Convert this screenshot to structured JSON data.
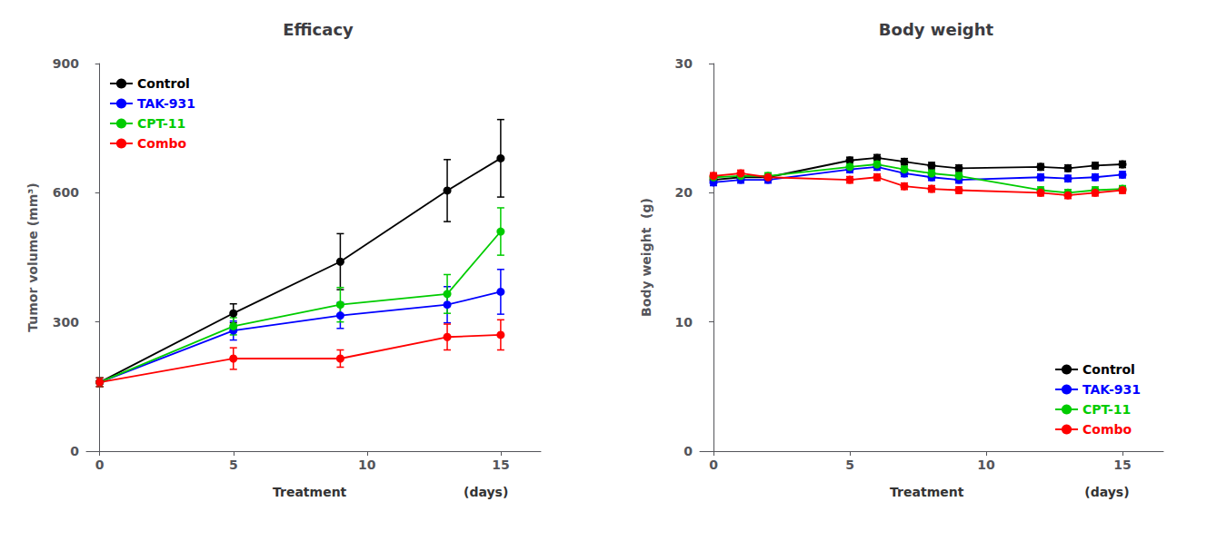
{
  "chart_data": [
    {
      "type": "line",
      "title": "Efficacy",
      "ylabel": "Tumor volume (mm³)",
      "annotations": [
        "Treatment",
        "(days)"
      ],
      "x": [
        0,
        5,
        9,
        13,
        15
      ],
      "xlim": [
        -0.5,
        16.5
      ],
      "xticks": [
        0,
        5,
        10,
        15
      ],
      "ylim": [
        0,
        900
      ],
      "yticks": [
        0,
        300,
        600,
        900
      ],
      "grid": false,
      "legend": "upper left",
      "marker": "circle",
      "line_style": "solid",
      "series": [
        {
          "name": "Control",
          "color": "#000000",
          "values": [
            160,
            320,
            440,
            605,
            680
          ],
          "yerr": [
            10,
            22,
            65,
            72,
            90
          ]
        },
        {
          "name": "TAK-931",
          "color": "#0000FF",
          "values": [
            160,
            280,
            315,
            340,
            370
          ],
          "yerr": [
            10,
            22,
            30,
            42,
            52
          ]
        },
        {
          "name": "CPT-11",
          "color": "#00CC00",
          "values": [
            160,
            290,
            340,
            365,
            510
          ],
          "yerr": [
            10,
            20,
            40,
            45,
            55
          ]
        },
        {
          "name": "Combo",
          "color": "#FF0000",
          "values": [
            160,
            215,
            215,
            265,
            270
          ],
          "yerr": [
            10,
            25,
            20,
            30,
            35
          ]
        }
      ]
    },
    {
      "type": "line",
      "title": "Body weight",
      "ylabel": "Body weight  (g)",
      "annotations": [
        "Treatment",
        "(days)"
      ],
      "x": [
        0,
        1,
        2,
        5,
        6,
        7,
        8,
        9,
        12,
        13,
        14,
        15
      ],
      "xlim": [
        -0.5,
        16.5
      ],
      "xticks": [
        0,
        5,
        10,
        15
      ],
      "ylim": [
        0,
        30
      ],
      "yticks": [
        0,
        10,
        20,
        30
      ],
      "grid": false,
      "legend": "lower right",
      "marker": "circle",
      "line_style": "solid",
      "series": [
        {
          "name": "Control",
          "color": "#000000",
          "values": [
            21.0,
            21.2,
            21.2,
            22.5,
            22.7,
            22.4,
            22.1,
            21.9,
            22.0,
            21.9,
            22.1,
            22.2
          ],
          "yerr": [
            0.25,
            0.25,
            0.25,
            0.25,
            0.25,
            0.25,
            0.25,
            0.25,
            0.25,
            0.25,
            0.25,
            0.25
          ]
        },
        {
          "name": "TAK-931",
          "color": "#0000FF",
          "values": [
            20.8,
            21.0,
            21.0,
            21.8,
            22.0,
            21.5,
            21.2,
            21.0,
            21.2,
            21.1,
            21.2,
            21.4
          ],
          "yerr": [
            0.25,
            0.25,
            0.25,
            0.25,
            0.25,
            0.25,
            0.25,
            0.25,
            0.25,
            0.25,
            0.25,
            0.25
          ]
        },
        {
          "name": "CPT-11",
          "color": "#00CC00",
          "values": [
            21.2,
            21.3,
            21.3,
            22.0,
            22.2,
            21.8,
            21.5,
            21.3,
            20.2,
            20.0,
            20.2,
            20.3
          ],
          "yerr": [
            0.25,
            0.25,
            0.25,
            0.25,
            0.25,
            0.25,
            0.25,
            0.25,
            0.25,
            0.25,
            0.25,
            0.25
          ]
        },
        {
          "name": "Combo",
          "color": "#FF0000",
          "values": [
            21.3,
            21.5,
            21.2,
            21.0,
            21.2,
            20.5,
            20.3,
            20.2,
            20.0,
            19.8,
            20.0,
            20.2
          ],
          "yerr": [
            0.25,
            0.25,
            0.25,
            0.25,
            0.25,
            0.25,
            0.25,
            0.25,
            0.25,
            0.25,
            0.25,
            0.25
          ]
        }
      ]
    }
  ]
}
